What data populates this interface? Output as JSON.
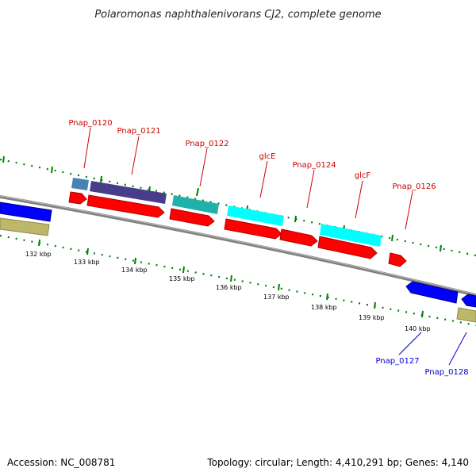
{
  "title": "Polaromonas naphthalenivorans CJ2, complete genome",
  "footer": {
    "accession": "Accession: NC_008781",
    "summary": "Topology: circular; Length: 4,410,291 bp; Genes: 4,140"
  },
  "colors": {
    "forward_label": "#cc0000",
    "reverse_label": "#0000cc",
    "backbone": "#808080",
    "gc_ticks": "#008000",
    "cds": "#ff0000",
    "steelblue": "#4682b4",
    "darkslateblue": "#483d8b",
    "lightseagreen": "#20b2aa",
    "cyan": "#00ffff",
    "blue": "#0000ff",
    "darkkhaki": "#bdb76b"
  },
  "forward_labels": [
    "Pnap_0120",
    "Pnap_0121",
    "Pnap_0122",
    "glcE",
    "Pnap_0124",
    "glcF",
    "Pnap_0126"
  ],
  "reverse_labels": [
    "Pnap_0127",
    "Pnap_0128"
  ],
  "kbp_ticks": [
    "132 kbp",
    "133 kbp",
    "134 kbp",
    "135 kbp",
    "136 kbp",
    "137 kbp",
    "138 kbp",
    "139 kbp",
    "140 kbp"
  ]
}
